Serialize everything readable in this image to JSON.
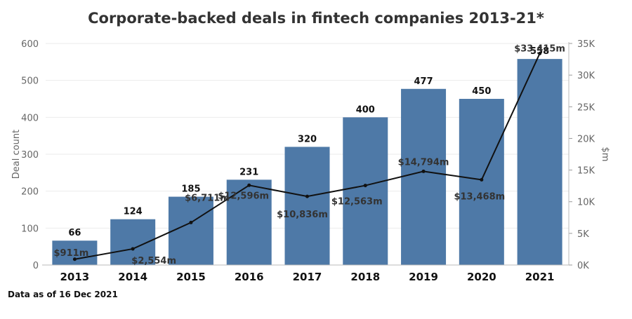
{
  "title": "Corporate-backed deals in fintech companies 2013-21*",
  "footnote": "Data as of 16 Dec 2021",
  "colors": {
    "bar": "#4e79a7",
    "line": "#111111",
    "axis_text": "#666666",
    "grid": "#ebebeb"
  },
  "chart_data": {
    "type": "bar",
    "title": "Corporate-backed deals in fintech companies 2013-21*",
    "categories": [
      "2013",
      "2014",
      "2015",
      "2016",
      "2017",
      "2018",
      "2019",
      "2020",
      "2021"
    ],
    "ylabel": "Deal count",
    "y2label": "$m",
    "ylim": [
      0,
      600
    ],
    "y2lim": [
      0,
      35000
    ],
    "yticks": [
      "0",
      "100",
      "200",
      "300",
      "400",
      "500",
      "600"
    ],
    "y2ticks": [
      "0K",
      "5K",
      "10K",
      "15K",
      "20K",
      "25K",
      "30K",
      "35K"
    ],
    "grid": true,
    "series": [
      {
        "type": "bar",
        "values": [
          66,
          124,
          185,
          231,
          320,
          400,
          477,
          450,
          558
        ],
        "labels": [
          "66",
          "124",
          "185",
          "231",
          "320",
          "400",
          "477",
          "450",
          "558"
        ]
      },
      {
        "type": "line",
        "axis": "right",
        "values": [
          911,
          2554,
          6711,
          12596,
          10836,
          12563,
          14794,
          13468,
          33415
        ],
        "labels": [
          "$911m",
          "$2,554m",
          "$6,711m",
          "$12,596m",
          "$10,836m",
          "$12,563m",
          "$14,794m",
          "$13,468m",
          "$33,415m"
        ]
      }
    ]
  }
}
